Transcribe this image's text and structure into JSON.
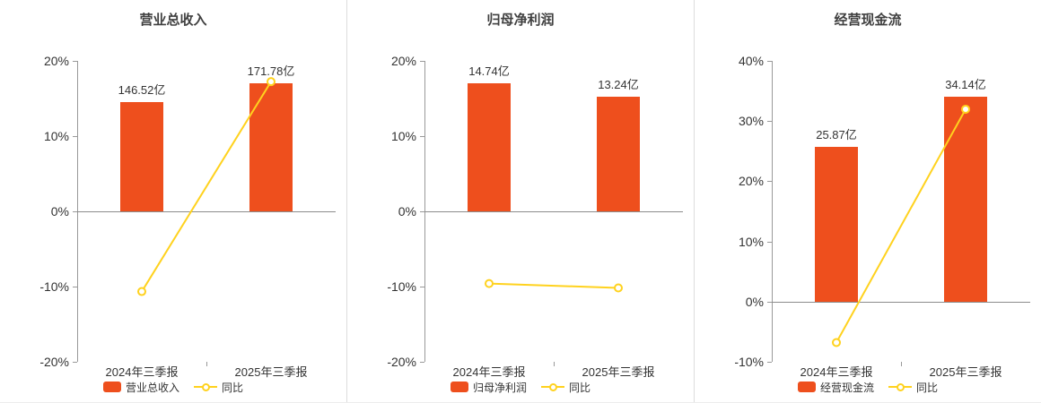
{
  "colors": {
    "bar": "#ee4f1d",
    "line": "#ffd21e",
    "marker_fill": "#ffffff",
    "axis": "#999999",
    "zero_line": "#8c8c8c",
    "text": "#333333",
    "title": "#404040",
    "divider": "#dddddd",
    "background": "#ffffff"
  },
  "chart_data": [
    {
      "type": "bar+line",
      "title": "营业总收入",
      "categories": [
        "2024年三季报",
        "2025年三季报"
      ],
      "axis": {
        "min": -20,
        "max": 20,
        "step": 10,
        "unit": "%",
        "tick_labels": [
          "20%",
          "10%",
          "0%",
          "-10%",
          "-20%"
        ]
      },
      "bars": {
        "name": "营业总收入",
        "unit": "亿",
        "values": [
          146.52,
          171.78
        ],
        "labels": [
          "146.52亿",
          "171.78亿"
        ]
      },
      "line": {
        "name": "同比",
        "unit": "%",
        "values": [
          -10.66,
          17.24
        ]
      },
      "legend": [
        {
          "label": "营业总收入",
          "type": "bar"
        },
        {
          "label": "同比",
          "type": "line"
        }
      ],
      "grid": false,
      "legend_position": "bottom"
    },
    {
      "type": "bar+line",
      "title": "归母净利润",
      "categories": [
        "2024年三季报",
        "2025年三季报"
      ],
      "axis": {
        "min": -20,
        "max": 20,
        "step": 10,
        "unit": "%",
        "tick_labels": [
          "20%",
          "10%",
          "0%",
          "-10%",
          "-20%"
        ]
      },
      "bars": {
        "name": "归母净利润",
        "unit": "亿",
        "values": [
          14.74,
          13.24
        ],
        "labels": [
          "14.74亿",
          "13.24亿"
        ]
      },
      "line": {
        "name": "同比",
        "unit": "%",
        "values": [
          -9.6,
          -10.18
        ]
      },
      "legend": [
        {
          "label": "归母净利润",
          "type": "bar"
        },
        {
          "label": "同比",
          "type": "line"
        }
      ],
      "grid": false,
      "legend_position": "bottom"
    },
    {
      "type": "bar+line",
      "title": "经营现金流",
      "categories": [
        "2024年三季报",
        "2025年三季报"
      ],
      "axis": {
        "min": -10,
        "max": 40,
        "step": 10,
        "unit": "%",
        "tick_labels": [
          "40%",
          "30%",
          "20%",
          "10%",
          "0%",
          "-10%"
        ]
      },
      "bars": {
        "name": "经营现金流",
        "unit": "亿",
        "values": [
          25.87,
          34.14
        ],
        "labels": [
          "25.87亿",
          "34.14亿"
        ]
      },
      "line": {
        "name": "同比",
        "unit": "%",
        "values": [
          -6.8,
          31.97
        ]
      },
      "legend": [
        {
          "label": "经营现金流",
          "type": "bar"
        },
        {
          "label": "同比",
          "type": "line"
        }
      ],
      "grid": false,
      "legend_position": "bottom"
    }
  ]
}
